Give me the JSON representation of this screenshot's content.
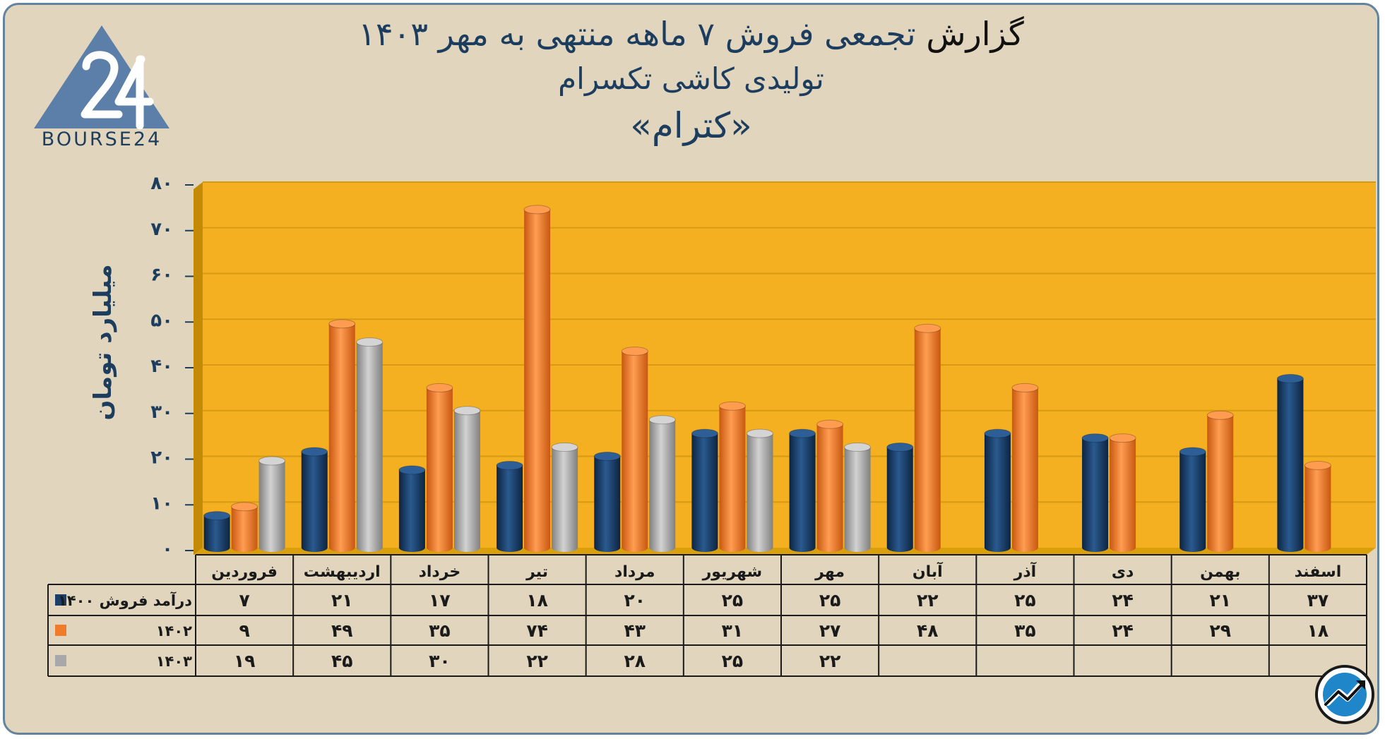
{
  "title": {
    "line1_word1": "گزارش",
    "line1_rest": "تجمعی فروش ۷ ماهه منتهی به مهر ۱۴۰۳",
    "line2": "تولیدی کاشی تکسرام",
    "line3": "«کترام»"
  },
  "logo": {
    "text": "BOURSE24",
    "icon": "bourse24-triangle-logo"
  },
  "badge_icon": "trend-arrow-icon",
  "chart_data": {
    "type": "bar",
    "ylabel": "میلیارد تومان",
    "ylim": [
      0,
      80
    ],
    "yticks": [
      0,
      10,
      20,
      30,
      40,
      50,
      60,
      70,
      80
    ],
    "ytick_labels": [
      "۰",
      "۱۰",
      "۲۰",
      "۳۰",
      "۴۰",
      "۵۰",
      "۶۰",
      "۷۰",
      "۸۰"
    ],
    "grid": true,
    "categories": [
      "فروردین",
      "اردیبهشت",
      "خرداد",
      "تیر",
      "مرداد",
      "شهریور",
      "مهر",
      "آبان",
      "آذر",
      "دی",
      "بهمن",
      "اسفند"
    ],
    "series": [
      {
        "name": "درآمد فروش ۱۴۰۰",
        "color": "#1b3f6b",
        "values": [
          7,
          21,
          17,
          18,
          20,
          25,
          25,
          22,
          25,
          24,
          21,
          37
        ],
        "labels": [
          "۷",
          "۲۱",
          "۱۷",
          "۱۸",
          "۲۰",
          "۲۵",
          "۲۵",
          "۲۲",
          "۲۵",
          "۲۴",
          "۲۱",
          "۳۷"
        ]
      },
      {
        "name": "۱۴۰۲",
        "color": "#f07c2a",
        "values": [
          9,
          49,
          35,
          74,
          43,
          31,
          27,
          48,
          35,
          24,
          29,
          18
        ],
        "labels": [
          "۹",
          "۴۹",
          "۳۵",
          "۷۴",
          "۴۳",
          "۳۱",
          "۲۷",
          "۴۸",
          "۳۵",
          "۲۴",
          "۲۹",
          "۱۸"
        ]
      },
      {
        "name": "۱۴۰۳",
        "color": "#a8a8a8",
        "values": [
          19,
          45,
          30,
          22,
          28,
          25,
          22,
          null,
          null,
          null,
          null,
          null
        ],
        "labels": [
          "۱۹",
          "۴۵",
          "۳۰",
          "۲۲",
          "۲۸",
          "۲۵",
          "۲۲",
          "",
          "",
          "",
          "",
          ""
        ]
      }
    ],
    "legend_placement": "data-table-left"
  }
}
